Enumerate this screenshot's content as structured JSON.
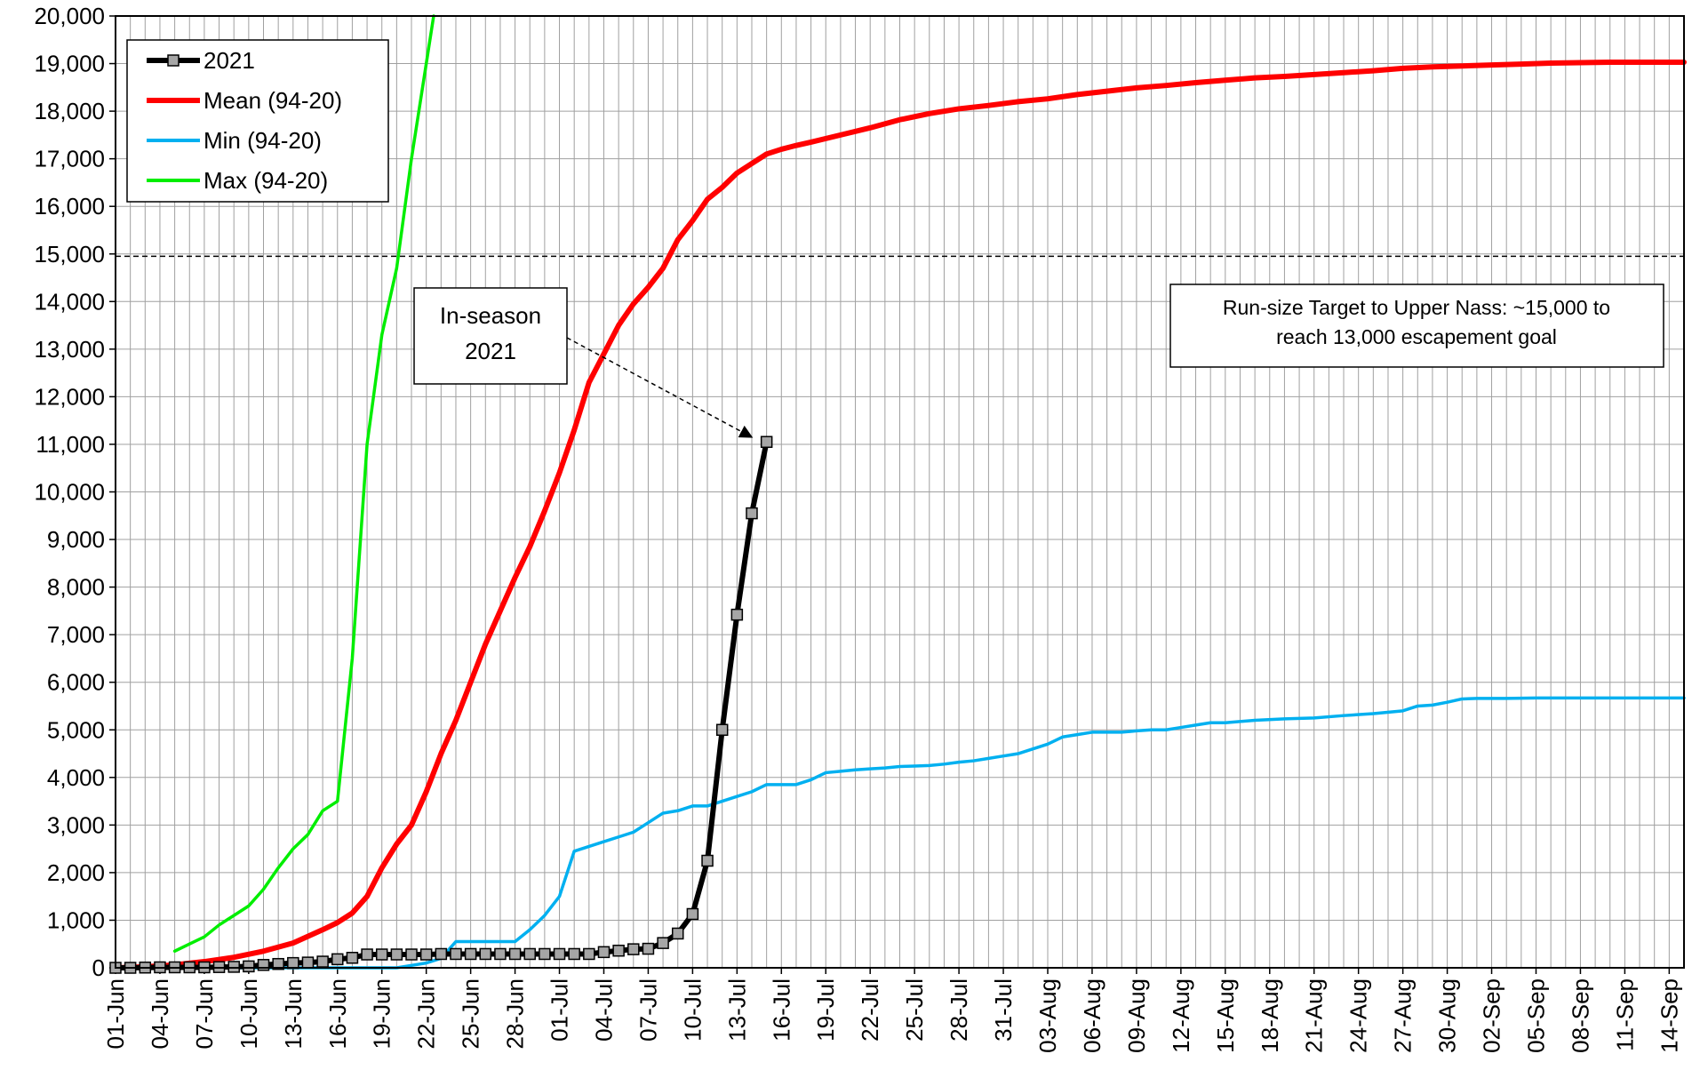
{
  "chart_data": {
    "type": "line",
    "title": "",
    "xlabel": "",
    "ylabel": "",
    "ylim": [
      0,
      20000
    ],
    "y_ticks": [
      "0",
      "1,000",
      "2,000",
      "3,000",
      "4,000",
      "5,000",
      "6,000",
      "7,000",
      "8,000",
      "9,000",
      "10,000",
      "11,000",
      "12,000",
      "13,000",
      "14,000",
      "15,000",
      "16,000",
      "17,000",
      "18,000",
      "19,000",
      "20,000"
    ],
    "x_start": "01-Jun",
    "x_end": "15-Sep",
    "x_tick_labels": [
      "01-Jun",
      "04-Jun",
      "07-Jun",
      "10-Jun",
      "13-Jun",
      "16-Jun",
      "19-Jun",
      "22-Jun",
      "25-Jun",
      "28-Jun",
      "01-Jul",
      "04-Jul",
      "07-Jul",
      "10-Jul",
      "13-Jul",
      "16-Jul",
      "19-Jul",
      "22-Jul",
      "25-Jul",
      "28-Jul",
      "31-Jul",
      "03-Aug",
      "06-Aug",
      "09-Aug",
      "12-Aug",
      "15-Aug",
      "18-Aug",
      "21-Aug",
      "24-Aug",
      "27-Aug",
      "30-Aug",
      "02-Sep",
      "05-Sep",
      "08-Sep",
      "11-Sep",
      "14-Sep"
    ],
    "grid": true,
    "legend_position": "top-left",
    "target_line": 14950,
    "series": [
      {
        "name": "2021",
        "color": "#000000",
        "marker": "square",
        "points": [
          [
            "01-Jun",
            0
          ],
          [
            "02-Jun",
            0
          ],
          [
            "03-Jun",
            5
          ],
          [
            "04-Jun",
            10
          ],
          [
            "05-Jun",
            10
          ],
          [
            "06-Jun",
            10
          ],
          [
            "07-Jun",
            10
          ],
          [
            "08-Jun",
            15
          ],
          [
            "09-Jun",
            20
          ],
          [
            "10-Jun",
            30
          ],
          [
            "11-Jun",
            60
          ],
          [
            "12-Jun",
            80
          ],
          [
            "13-Jun",
            100
          ],
          [
            "14-Jun",
            110
          ],
          [
            "15-Jun",
            130
          ],
          [
            "16-Jun",
            180
          ],
          [
            "17-Jun",
            210
          ],
          [
            "18-Jun",
            280
          ],
          [
            "19-Jun",
            280
          ],
          [
            "20-Jun",
            280
          ],
          [
            "21-Jun",
            280
          ],
          [
            "22-Jun",
            280
          ],
          [
            "23-Jun",
            290
          ],
          [
            "24-Jun",
            290
          ],
          [
            "25-Jun",
            290
          ],
          [
            "26-Jun",
            290
          ],
          [
            "27-Jun",
            290
          ],
          [
            "28-Jun",
            290
          ],
          [
            "29-Jun",
            290
          ],
          [
            "30-Jun",
            290
          ],
          [
            "01-Jul",
            290
          ],
          [
            "02-Jul",
            290
          ],
          [
            "03-Jul",
            290
          ],
          [
            "04-Jul",
            330
          ],
          [
            "05-Jul",
            360
          ],
          [
            "06-Jul",
            390
          ],
          [
            "07-Jul",
            400
          ],
          [
            "08-Jul",
            520
          ],
          [
            "09-Jul",
            720
          ],
          [
            "10-Jul",
            1130
          ],
          [
            "11-Jul",
            2250
          ],
          [
            "12-Jul",
            5000
          ],
          [
            "13-Jul",
            7420
          ],
          [
            "14-Jul",
            9550
          ],
          [
            "15-Jul",
            11050
          ]
        ]
      },
      {
        "name": "Mean (94-20)",
        "color": "#ff0000",
        "points": [
          [
            "01-Jun",
            0
          ],
          [
            "03-Jun",
            20
          ],
          [
            "05-Jun",
            60
          ],
          [
            "07-Jun",
            130
          ],
          [
            "09-Jun",
            220
          ],
          [
            "11-Jun",
            350
          ],
          [
            "13-Jun",
            520
          ],
          [
            "15-Jun",
            800
          ],
          [
            "16-Jun",
            950
          ],
          [
            "17-Jun",
            1150
          ],
          [
            "18-Jun",
            1500
          ],
          [
            "19-Jun",
            2100
          ],
          [
            "20-Jun",
            2600
          ],
          [
            "21-Jun",
            3000
          ],
          [
            "22-Jun",
            3700
          ],
          [
            "23-Jun",
            4500
          ],
          [
            "24-Jun",
            5200
          ],
          [
            "25-Jun",
            6000
          ],
          [
            "26-Jun",
            6800
          ],
          [
            "27-Jun",
            7500
          ],
          [
            "28-Jun",
            8200
          ],
          [
            "29-Jun",
            8850
          ],
          [
            "30-Jun",
            9600
          ],
          [
            "01-Jul",
            10400
          ],
          [
            "02-Jul",
            11300
          ],
          [
            "03-Jul",
            12300
          ],
          [
            "04-Jul",
            12900
          ],
          [
            "05-Jul",
            13500
          ],
          [
            "06-Jul",
            13950
          ],
          [
            "07-Jul",
            14300
          ],
          [
            "08-Jul",
            14700
          ],
          [
            "09-Jul",
            15300
          ],
          [
            "10-Jul",
            15700
          ],
          [
            "11-Jul",
            16150
          ],
          [
            "12-Jul",
            16400
          ],
          [
            "13-Jul",
            16700
          ],
          [
            "14-Jul",
            16900
          ],
          [
            "15-Jul",
            17100
          ],
          [
            "16-Jul",
            17200
          ],
          [
            "17-Jul",
            17280
          ],
          [
            "18-Jul",
            17350
          ],
          [
            "20-Jul",
            17500
          ],
          [
            "22-Jul",
            17650
          ],
          [
            "24-Jul",
            17820
          ],
          [
            "26-Jul",
            17950
          ],
          [
            "28-Jul",
            18050
          ],
          [
            "30-Jul",
            18120
          ],
          [
            "01-Aug",
            18200
          ],
          [
            "03-Aug",
            18260
          ],
          [
            "05-Aug",
            18350
          ],
          [
            "07-Aug",
            18420
          ],
          [
            "09-Aug",
            18490
          ],
          [
            "11-Aug",
            18540
          ],
          [
            "13-Aug",
            18600
          ],
          [
            "15-Aug",
            18650
          ],
          [
            "17-Aug",
            18700
          ],
          [
            "19-Aug",
            18730
          ],
          [
            "21-Aug",
            18770
          ],
          [
            "23-Aug",
            18810
          ],
          [
            "25-Aug",
            18850
          ],
          [
            "27-Aug",
            18900
          ],
          [
            "29-Aug",
            18930
          ],
          [
            "31-Aug",
            18950
          ],
          [
            "02-Sep",
            18970
          ],
          [
            "04-Sep",
            18990
          ],
          [
            "06-Sep",
            19010
          ],
          [
            "08-Sep",
            19020
          ],
          [
            "10-Sep",
            19030
          ],
          [
            "12-Sep",
            19030
          ],
          [
            "15-Sep",
            19030
          ]
        ]
      },
      {
        "name": "Min (94-20)",
        "color": "#00b0f0",
        "points": [
          [
            "01-Jun",
            0
          ],
          [
            "05-Jun",
            0
          ],
          [
            "10-Jun",
            0
          ],
          [
            "15-Jun",
            0
          ],
          [
            "20-Jun",
            0
          ],
          [
            "21-Jun",
            50
          ],
          [
            "22-Jun",
            100
          ],
          [
            "23-Jun",
            200
          ],
          [
            "24-Jun",
            550
          ],
          [
            "25-Jun",
            550
          ],
          [
            "26-Jun",
            550
          ],
          [
            "27-Jun",
            550
          ],
          [
            "28-Jun",
            550
          ],
          [
            "29-Jun",
            800
          ],
          [
            "30-Jun",
            1100
          ],
          [
            "01-Jul",
            1500
          ],
          [
            "02-Jul",
            2450
          ],
          [
            "03-Jul",
            2550
          ],
          [
            "04-Jul",
            2650
          ],
          [
            "05-Jul",
            2750
          ],
          [
            "06-Jul",
            2850
          ],
          [
            "07-Jul",
            3050
          ],
          [
            "08-Jul",
            3250
          ],
          [
            "09-Jul",
            3300
          ],
          [
            "10-Jul",
            3400
          ],
          [
            "11-Jul",
            3400
          ],
          [
            "12-Jul",
            3500
          ],
          [
            "13-Jul",
            3600
          ],
          [
            "14-Jul",
            3700
          ],
          [
            "15-Jul",
            3850
          ],
          [
            "16-Jul",
            3850
          ],
          [
            "17-Jul",
            3850
          ],
          [
            "18-Jul",
            3950
          ],
          [
            "19-Jul",
            4100
          ],
          [
            "20-Jul",
            4130
          ],
          [
            "21-Jul",
            4160
          ],
          [
            "22-Jul",
            4180
          ],
          [
            "23-Jul",
            4200
          ],
          [
            "24-Jul",
            4230
          ],
          [
            "25-Jul",
            4240
          ],
          [
            "26-Jul",
            4250
          ],
          [
            "27-Jul",
            4280
          ],
          [
            "28-Jul",
            4320
          ],
          [
            "29-Jul",
            4350
          ],
          [
            "30-Jul",
            4400
          ],
          [
            "31-Jul",
            4450
          ],
          [
            "01-Aug",
            4500
          ],
          [
            "02-Aug",
            4600
          ],
          [
            "03-Aug",
            4700
          ],
          [
            "04-Aug",
            4850
          ],
          [
            "05-Aug",
            4900
          ],
          [
            "06-Aug",
            4950
          ],
          [
            "07-Aug",
            4950
          ],
          [
            "08-Aug",
            4950
          ],
          [
            "09-Aug",
            4980
          ],
          [
            "10-Aug",
            5000
          ],
          [
            "11-Aug",
            5000
          ],
          [
            "12-Aug",
            5050
          ],
          [
            "13-Aug",
            5100
          ],
          [
            "14-Aug",
            5150
          ],
          [
            "15-Aug",
            5150
          ],
          [
            "17-Aug",
            5200
          ],
          [
            "19-Aug",
            5230
          ],
          [
            "21-Aug",
            5250
          ],
          [
            "23-Aug",
            5300
          ],
          [
            "25-Aug",
            5340
          ],
          [
            "27-Aug",
            5400
          ],
          [
            "28-Aug",
            5500
          ],
          [
            "29-Aug",
            5520
          ],
          [
            "30-Aug",
            5580
          ],
          [
            "31-Aug",
            5650
          ],
          [
            "01-Sep",
            5660
          ],
          [
            "03-Sep",
            5660
          ],
          [
            "05-Sep",
            5670
          ],
          [
            "08-Sep",
            5670
          ],
          [
            "11-Sep",
            5670
          ],
          [
            "15-Sep",
            5670
          ]
        ]
      },
      {
        "name": "Max (94-20)",
        "color": "#00ee00",
        "points": [
          [
            "05-Jun",
            350
          ],
          [
            "06-Jun",
            500
          ],
          [
            "07-Jun",
            650
          ],
          [
            "08-Jun",
            900
          ],
          [
            "09-Jun",
            1100
          ],
          [
            "10-Jun",
            1300
          ],
          [
            "11-Jun",
            1650
          ],
          [
            "12-Jun",
            2100
          ],
          [
            "13-Jun",
            2500
          ],
          [
            "14-Jun",
            2800
          ],
          [
            "15-Jun",
            3300
          ],
          [
            "16-Jun",
            3500
          ],
          [
            "17-Jun",
            6500
          ],
          [
            "18-Jun",
            11000
          ],
          [
            "19-Jun",
            13300
          ],
          [
            "20-Jun",
            14700
          ],
          [
            "21-Jun",
            17000
          ],
          [
            "22-Jun",
            19000
          ],
          [
            "22.5-Jun",
            20000
          ]
        ]
      }
    ],
    "annotations": [
      {
        "text_lines": [
          "In-season",
          "2021"
        ],
        "arrow_to": [
          "14-Jul",
          11150
        ]
      },
      {
        "text_lines": [
          "Run-size Target  to Upper Nass: ~15,000 to",
          "reach 13,000 escapement goal"
        ]
      }
    ]
  }
}
